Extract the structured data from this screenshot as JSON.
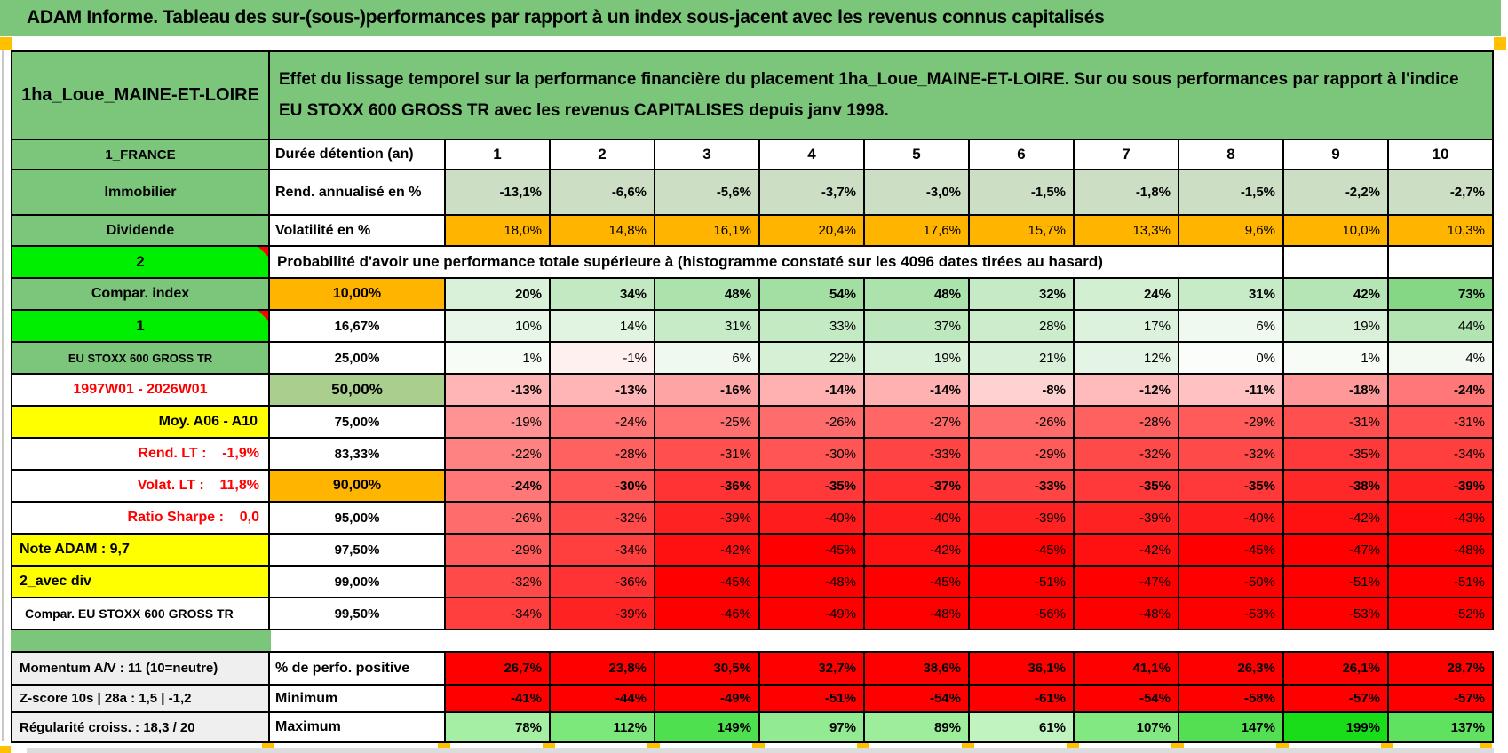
{
  "colors": {
    "header_green": "#7CC67C",
    "bright_green": "#00EE00",
    "orange": "#FFB400",
    "yellow": "#FFFF00",
    "sage_green": "#A9CE8E",
    "rend_row_green": "#CCDEC3",
    "red": "#FF0000",
    "gray_label": "#EFEFEF",
    "marker_orange": "#FFC000"
  },
  "title_bar": {
    "text": "ADAM Informe. Tableau des sur-(sous-)performances par rapport à un index sous-jacent avec les revenus connus capitalisés"
  },
  "header": {
    "placement": "1ha_Loue_MAINE-ET-LOIRE",
    "description": "Effet du lissage temporel sur la performance financière du placement 1ha_Loue_MAINE-ET-LOIRE. Sur ou sous performances par rapport à l'indice EU STOXX 600 GROSS TR avec les revenus CAPITALISES depuis janv 1998."
  },
  "columns": {
    "a_label": "1_FRANCE",
    "b_label": "Durée détention (an)",
    "years": [
      "1",
      "2",
      "3",
      "4",
      "5",
      "6",
      "7",
      "8",
      "9",
      "10"
    ]
  },
  "rows": [
    {
      "name": "rendement",
      "a": "Immobilier",
      "a_style": "green",
      "b": "Rend. annualisé en %",
      "b_style": "left",
      "bold": true,
      "values": [
        "-13,1%",
        "-6,6%",
        "-5,6%",
        "-3,7%",
        "-3,0%",
        "-1,5%",
        "-1,8%",
        "-1,5%",
        "-2,2%",
        "-2,7%"
      ],
      "bgs": [
        "#CCDEC3",
        "#CCDEC3",
        "#CCDEC3",
        "#CCDEC3",
        "#CCDEC3",
        "#CCDEC3",
        "#CCDEC3",
        "#CCDEC3",
        "#CCDEC3",
        "#CCDEC3"
      ]
    },
    {
      "name": "volatilite",
      "a": "Dividende",
      "a_style": "green",
      "b": "Volatilité en %",
      "b_style": "left",
      "bold": false,
      "values": [
        "18,0%",
        "14,8%",
        "16,1%",
        "20,4%",
        "17,6%",
        "15,7%",
        "13,3%",
        "9,6%",
        "10,0%",
        "10,3%"
      ],
      "bgs": [
        "#FFB400",
        "#FFB400",
        "#FFB400",
        "#FFB400",
        "#FFB400",
        "#FFB400",
        "#FFB400",
        "#FFB400",
        "#FFB400",
        "#FFB400"
      ]
    },
    {
      "name": "proba",
      "a": "2",
      "a_style": "bright",
      "merged_text": "Probabilité d'avoir une performance totale supérieure à (histogramme constaté sur les 4096 dates tirées au hasard)",
      "trailing_empty": 2
    },
    {
      "name": "p10",
      "a": "Compar. index",
      "a_style": "green",
      "b": "10,00%",
      "b_style": "orange",
      "bold": true,
      "values": [
        "20%",
        "34%",
        "48%",
        "54%",
        "48%",
        "32%",
        "24%",
        "31%",
        "42%",
        "73%"
      ],
      "bgs": [
        "#D9F1D9",
        "#C2E9C2",
        "#ACE2AC",
        "#A3DFA3",
        "#ACE2AC",
        "#C5EAC5",
        "#D2EFD2",
        "#C7EBC7",
        "#B5E5B5",
        "#85D685"
      ]
    },
    {
      "name": "p16",
      "a": "1",
      "a_style": "bright",
      "b": "16,67%",
      "b_style": "center",
      "bold": false,
      "values": [
        "10%",
        "14%",
        "31%",
        "33%",
        "37%",
        "28%",
        "17%",
        "6%",
        "19%",
        "44%"
      ],
      "bgs": [
        "#E8F6E8",
        "#E1F4E1",
        "#C7EBC7",
        "#C4EAC4",
        "#BDE7BD",
        "#CCEDCC",
        "#DCF2DC",
        "#EFF9EF",
        "#D9F1D9",
        "#B2E4B2"
      ]
    },
    {
      "name": "p25",
      "a": "EU STOXX 600 GROSS TR",
      "a_style": "green-sm",
      "b": "25,00%",
      "b_style": "center",
      "bold": false,
      "values": [
        "1%",
        "-1%",
        "6%",
        "22%",
        "19%",
        "21%",
        "12%",
        "0%",
        "1%",
        "4%"
      ],
      "bgs": [
        "#F7FCF7",
        "#FFF0F0",
        "#EFF9EF",
        "#D6F0D6",
        "#D9F1D9",
        "#D7F0D7",
        "#E5F5E5",
        "#FBFDFB",
        "#F7FCF7",
        "#F2FAF2"
      ]
    },
    {
      "name": "p50",
      "a": "1997W01 - 2026W01",
      "a_style": "red-c",
      "b": "50,00%",
      "b_style": "sage",
      "bold": true,
      "values": [
        "-13%",
        "-13%",
        "-16%",
        "-14%",
        "-14%",
        "-8%",
        "-12%",
        "-11%",
        "-18%",
        "-24%"
      ],
      "bgs": [
        "#FFB5B5",
        "#FFB5B5",
        "#FFA4A4",
        "#FFB0B0",
        "#FFB0B0",
        "#FFD2D2",
        "#FFBBBB",
        "#FFC1C1",
        "#FF9999",
        "#FF7777"
      ]
    },
    {
      "name": "p75",
      "a": "Moy. A06 - A10",
      "a_style": "yellow-r",
      "b": "75,00%",
      "b_style": "center",
      "bold": false,
      "values": [
        "-19%",
        "-24%",
        "-25%",
        "-26%",
        "-27%",
        "-26%",
        "-28%",
        "-29%",
        "-31%",
        "-31%"
      ],
      "bgs": [
        "#FF9393",
        "#FF7777",
        "#FF7171",
        "#FF6C6C",
        "#FF6666",
        "#FF6C6C",
        "#FF6060",
        "#FF5B5B",
        "#FF4F4F",
        "#FF4F4F"
      ]
    },
    {
      "name": "p83",
      "a": "Rend. LT :    -1,9%",
      "a_style": "red-r",
      "b": "83,33%",
      "b_style": "center",
      "bold": false,
      "values": [
        "-22%",
        "-28%",
        "-31%",
        "-30%",
        "-33%",
        "-29%",
        "-32%",
        "-32%",
        "-35%",
        "-34%"
      ],
      "bgs": [
        "#FF8282",
        "#FF6060",
        "#FF4F4F",
        "#FF5555",
        "#FF4444",
        "#FF5B5B",
        "#FF4A4A",
        "#FF4A4A",
        "#FF3939",
        "#FF3E3E"
      ]
    },
    {
      "name": "p90",
      "a": "Volat. LT :    11,8%",
      "a_style": "red-r",
      "b": "90,00%",
      "b_style": "orange",
      "bold": true,
      "values": [
        "-24%",
        "-30%",
        "-36%",
        "-35%",
        "-37%",
        "-33%",
        "-35%",
        "-35%",
        "-38%",
        "-39%"
      ],
      "bgs": [
        "#FF7777",
        "#FF5555",
        "#FF3333",
        "#FF3939",
        "#FF2D2D",
        "#FF4444",
        "#FF3939",
        "#FF3939",
        "#FF2828",
        "#FF2222"
      ]
    },
    {
      "name": "p95",
      "a": "Ratio Sharpe :    0,0",
      "a_style": "red-r",
      "b": "95,00%",
      "b_style": "center",
      "bold": false,
      "values": [
        "-26%",
        "-32%",
        "-39%",
        "-40%",
        "-40%",
        "-39%",
        "-39%",
        "-40%",
        "-42%",
        "-43%"
      ],
      "bgs": [
        "#FF6C6C",
        "#FF4A4A",
        "#FF2222",
        "#FF1C1C",
        "#FF1C1C",
        "#FF2222",
        "#FF2222",
        "#FF1C1C",
        "#FF1111",
        "#FF0B0B"
      ]
    },
    {
      "name": "p975",
      "a": "Note ADAM : 9,7",
      "a_style": "yellow-l",
      "b": "97,50%",
      "b_style": "center",
      "bold": false,
      "values": [
        "-29%",
        "-34%",
        "-42%",
        "-45%",
        "-42%",
        "-45%",
        "-42%",
        "-45%",
        "-47%",
        "-48%"
      ],
      "bgs": [
        "#FF5B5B",
        "#FF3E3E",
        "#FF1111",
        "#FF0000",
        "#FF1111",
        "#FF0000",
        "#FF1111",
        "#FF0000",
        "#FF0000",
        "#FF0000"
      ]
    },
    {
      "name": "p99",
      "a": "2_avec div",
      "a_style": "yellow-l",
      "b": "99,00%",
      "b_style": "center",
      "bold": false,
      "values": [
        "-32%",
        "-36%",
        "-45%",
        "-48%",
        "-45%",
        "-51%",
        "-47%",
        "-50%",
        "-51%",
        "-51%"
      ],
      "bgs": [
        "#FF4A4A",
        "#FF3333",
        "#FF0000",
        "#FF0000",
        "#FF0000",
        "#FF0000",
        "#FF0000",
        "#FF0000",
        "#FF0000",
        "#FF0000"
      ]
    },
    {
      "name": "p995",
      "a": "Compar. EU STOXX 600 GROSS TR",
      "a_style": "white-l-sm",
      "b": "99,50%",
      "b_style": "center",
      "bold": false,
      "values": [
        "-34%",
        "-39%",
        "-46%",
        "-49%",
        "-48%",
        "-56%",
        "-48%",
        "-53%",
        "-53%",
        "-52%"
      ],
      "bgs": [
        "#FF3E3E",
        "#FF2222",
        "#FF0000",
        "#FF0000",
        "#FF0000",
        "#FF0000",
        "#FF0000",
        "#FF0000",
        "#FF0000",
        "#FF0000"
      ]
    },
    {
      "name": "perfo",
      "section": "bottom",
      "a": "Momentum A/V : 11 (10=neutre)",
      "a_style": "gray",
      "b": "% de perfo. positive",
      "b_style": "left",
      "bold": true,
      "values": [
        "26,7%",
        "23,8%",
        "30,5%",
        "32,7%",
        "38,6%",
        "36,1%",
        "41,1%",
        "26,3%",
        "26,1%",
        "28,7%"
      ],
      "bgs": [
        "#FF0000",
        "#FF0000",
        "#FF0000",
        "#FF0000",
        "#FF0000",
        "#FF0000",
        "#FF0000",
        "#FF0000",
        "#FF0000",
        "#FF0000"
      ]
    },
    {
      "name": "minimum",
      "section": "bottom",
      "a": "Z-score 10s | 28a : 1,5 | -1,2",
      "a_style": "gray",
      "b": "Minimum",
      "b_style": "left",
      "bold": true,
      "values": [
        "-41%",
        "-44%",
        "-49%",
        "-51%",
        "-54%",
        "-61%",
        "-54%",
        "-58%",
        "-57%",
        "-57%"
      ],
      "bgs": [
        "#FF0000",
        "#FF0000",
        "#FF0000",
        "#FF0000",
        "#FF0000",
        "#FF0000",
        "#FF0000",
        "#FF0000",
        "#FF0000",
        "#FF0000"
      ]
    },
    {
      "name": "maximum",
      "section": "bottom",
      "a": "Régularité croiss. : 18,3 / 20",
      "a_style": "gray",
      "b": "Maximum",
      "b_style": "left",
      "bold": true,
      "values": [
        "78%",
        "112%",
        "149%",
        "97%",
        "89%",
        "61%",
        "107%",
        "147%",
        "199%",
        "137%"
      ],
      "bgs": [
        "#A5EFA5",
        "#7CE87C",
        "#4FE04F",
        "#92EB92",
        "#9DED9D",
        "#C0F3C0",
        "#82E982",
        "#52E052",
        "#1ADD1A",
        "#5FE25F"
      ]
    }
  ]
}
